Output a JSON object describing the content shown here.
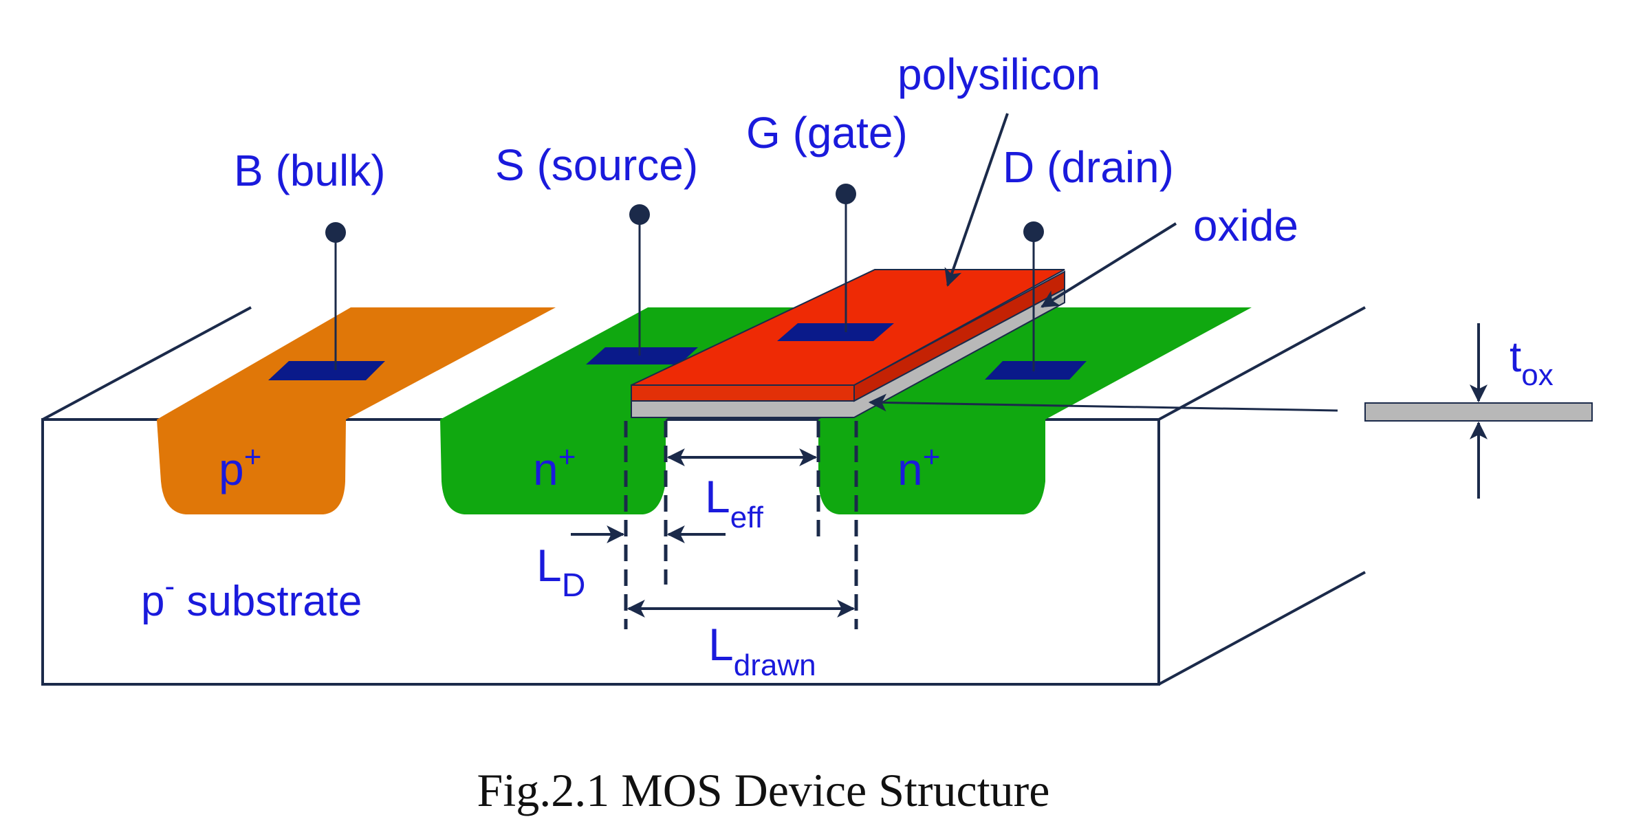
{
  "colors": {
    "label": "#1a1adc",
    "p_plus": "#e07708",
    "n_plus": "#10a810",
    "polysilicon": "#ee2a05",
    "oxide": "#b8b8b8",
    "contact": "#0a1a8a",
    "outline": "#1b2a4a"
  },
  "labels": {
    "bulk": "B (bulk)",
    "source": "S (source)",
    "gate": "G (gate)",
    "drain": "D (drain)",
    "polysilicon": "polysilicon",
    "oxide": "oxide",
    "p_plus": "p",
    "p_plus_sup": "+",
    "n_plus": "n",
    "n_plus_sup": "+",
    "substrate_p": "p",
    "substrate_sup": "-",
    "substrate_text": " substrate",
    "l_eff": "L",
    "l_eff_sub": "eff",
    "l_d": "L",
    "l_d_sub": "D",
    "l_drawn": "L",
    "l_drawn_sub": "drawn",
    "t_ox": "t",
    "t_ox_sub": "ox"
  },
  "caption": "Fig.2.1 MOS Device Structure"
}
